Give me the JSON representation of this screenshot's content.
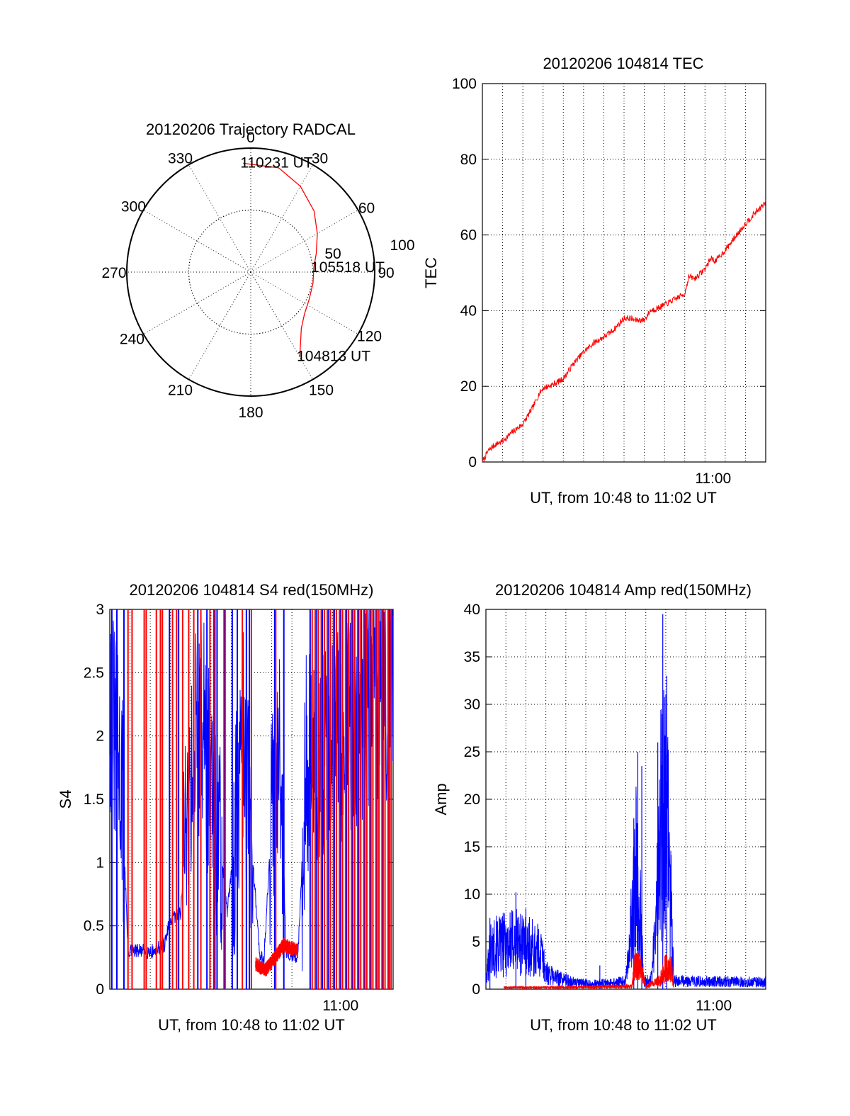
{
  "colors": {
    "red": "#ff0000",
    "blue": "#0000ff",
    "axis": "#000000",
    "background": "#ffffff"
  },
  "chart_data": [
    {
      "type": "polar",
      "title": "20120206 Trajectory RADCAL",
      "angle_labels": [
        "0",
        "30",
        "60",
        "90",
        "120",
        "150",
        "180",
        "210",
        "240",
        "270",
        "300",
        "330"
      ],
      "radius_labels": [
        "50",
        "100"
      ],
      "rlim": [
        0,
        100
      ],
      "grid": true,
      "series": [
        {
          "color": "red",
          "points": [
            {
              "az": 150,
              "r": 79
            },
            {
              "az": 145,
              "r": 70
            },
            {
              "az": 138,
              "r": 61
            },
            {
              "az": 128,
              "r": 55
            },
            {
              "az": 115,
              "r": 52
            },
            {
              "az": 100,
              "r": 51
            },
            {
              "az": 86,
              "r": 51
            },
            {
              "az": 74,
              "r": 55
            },
            {
              "az": 60,
              "r": 62
            },
            {
              "az": 46,
              "r": 71
            },
            {
              "az": 30,
              "r": 80
            },
            {
              "az": 15,
              "r": 87
            },
            {
              "az": 356,
              "r": 88
            }
          ]
        }
      ],
      "annotations": [
        {
          "text": "104813 UT",
          "az": 150,
          "r": 79
        },
        {
          "text": "105518 UT",
          "az": 86,
          "r": 51
        },
        {
          "text": "110231 UT",
          "az": 356,
          "r": 88
        }
      ]
    },
    {
      "type": "line",
      "title": "20120206 104814 TEC",
      "xlabel": "UT, from 10:48 to 11:02 UT",
      "ylabel": "TEC",
      "x_tick_labels": [
        {
          "label": "11:00",
          "minute": 11.4
        }
      ],
      "xlim": [
        0,
        14
      ],
      "ylim": [
        0,
        100
      ],
      "yticks": [
        "0",
        "20",
        "40",
        "60",
        "80",
        "100"
      ],
      "grid": true,
      "series": [
        {
          "color": "red",
          "x": [
            0,
            0.3,
            0.6,
            1.0,
            1.5,
            2.0,
            2.5,
            2.8,
            3.0,
            3.5,
            4.0,
            4.5,
            5.0,
            5.5,
            6.0,
            6.5,
            7.0,
            7.3,
            7.5,
            8.0,
            8.3,
            8.6,
            9.0,
            9.5,
            10.0,
            10.2,
            10.5,
            11.0,
            11.3,
            11.5,
            12.0,
            12.5,
            13.0,
            13.5,
            14.0
          ],
          "y": [
            0,
            3,
            4.5,
            5.5,
            8,
            10,
            14.5,
            18,
            19.5,
            20.5,
            22,
            26,
            29,
            31.5,
            33,
            35,
            38,
            38,
            37.5,
            37.5,
            40,
            40.5,
            41.5,
            43,
            44.5,
            49,
            48.5,
            51,
            54,
            53,
            56,
            59.5,
            63,
            66,
            68.5
          ]
        }
      ]
    },
    {
      "type": "line",
      "title": "20120206 104814 S4 red(150MHz)",
      "xlabel": "UT, from 10:48 to 11:02 UT",
      "ylabel": "S4",
      "x_tick_labels": [
        {
          "label": "11:00",
          "minute": 11.4
        }
      ],
      "xlim": [
        0,
        14
      ],
      "ylim": [
        0,
        3
      ],
      "yticks": [
        "0",
        "0.5",
        "1",
        "1.5",
        "2",
        "2.5",
        "3"
      ],
      "grid": true,
      "series": [
        {
          "color": "blue",
          "profile": [
            [
              0,
              2.3
            ],
            [
              0.3,
              1.9
            ],
            [
              0.6,
              1.6
            ],
            [
              0.9,
              0.3
            ],
            [
              2.2,
              0.3
            ],
            [
              2.7,
              0.35
            ],
            [
              3.0,
              0.55
            ],
            [
              3.5,
              0.6
            ],
            [
              3.8,
              1.4
            ],
            [
              4.2,
              2.0
            ],
            [
              4.6,
              2.2
            ],
            [
              5.0,
              1.5
            ],
            [
              5.5,
              1.1
            ],
            [
              5.8,
              0.6
            ],
            [
              6.2,
              1.2
            ],
            [
              6.6,
              2.0
            ],
            [
              7.4,
              0.3
            ],
            [
              7.6,
              0.2
            ],
            [
              8.0,
              1.3
            ],
            [
              8.4,
              2.2
            ],
            [
              8.7,
              0.3
            ],
            [
              9.3,
              0.25
            ],
            [
              9.7,
              1.8
            ],
            [
              14.0,
              2.4
            ]
          ],
          "spikes": [
            0.1,
            0.35,
            0.7,
            2.95,
            3.4,
            4.35,
            4.8,
            5.15,
            5.3,
            5.65,
            6.05,
            6.3,
            6.75,
            6.9,
            8.15,
            8.6,
            9.9,
            10.2,
            10.5,
            10.8,
            11.1,
            11.4,
            11.7,
            12.0,
            12.3,
            12.6,
            12.9,
            13.2,
            13.5,
            13.8
          ]
        },
        {
          "color": "red",
          "profile": [
            [
              7.2,
              0.2
            ],
            [
              7.7,
              0.15
            ],
            [
              8.6,
              0.35
            ],
            [
              9.3,
              0.3
            ]
          ],
          "spikes": [
            0.9,
            1.1,
            1.7,
            1.8,
            2.3,
            2.5,
            2.6,
            3.1,
            3.3,
            3.6,
            3.9,
            4.15,
            4.5,
            4.95,
            5.2,
            5.7,
            6.55,
            7.0,
            8.2,
            10.0,
            10.15,
            10.3,
            10.45,
            10.6,
            10.75,
            10.9,
            11.05,
            11.2,
            11.35,
            11.5,
            11.65,
            11.8,
            11.95,
            12.1,
            12.25,
            12.4,
            12.55,
            12.7,
            12.85,
            13.0,
            13.15,
            13.3,
            13.45,
            13.6,
            13.75,
            13.9
          ]
        }
      ]
    },
    {
      "type": "line",
      "title": "20120206 104814 Amp red(150MHz)",
      "xlabel": "UT, from 10:48 to 11:02 UT",
      "ylabel": "Amp",
      "x_tick_labels": [
        {
          "label": "11:00",
          "minute": 11.4
        }
      ],
      "xlim": [
        0,
        14
      ],
      "ylim": [
        0,
        40
      ],
      "yticks": [
        "0",
        "5",
        "10",
        "15",
        "20",
        "25",
        "30",
        "35",
        "40"
      ],
      "grid": true,
      "series": [
        {
          "color": "blue",
          "envelope": [
            [
              0,
              1.0
            ],
            [
              0.2,
              7.5
            ],
            [
              0.8,
              8.0
            ],
            [
              1.2,
              8.5
            ],
            [
              1.6,
              9.0
            ],
            [
              2.0,
              8.0
            ],
            [
              2.8,
              6.5
            ],
            [
              3.0,
              3.0
            ],
            [
              3.5,
              2.2
            ],
            [
              4.5,
              1.2
            ],
            [
              5.5,
              1.0
            ],
            [
              6.5,
              1.2
            ],
            [
              7.0,
              1.5
            ],
            [
              7.3,
              12.0
            ],
            [
              7.5,
              22.0
            ],
            [
              7.7,
              15.0
            ],
            [
              7.9,
              1.5
            ],
            [
              8.3,
              2.0
            ],
            [
              8.6,
              18.0
            ],
            [
              8.8,
              35.0
            ],
            [
              9.0,
              32.0
            ],
            [
              9.2,
              22.0
            ],
            [
              9.4,
              1.5
            ],
            [
              14.0,
              1.3
            ]
          ],
          "spikes": [
            [
              0.2,
              7.5
            ],
            [
              1.5,
              10.2
            ],
            [
              2.0,
              8.5
            ],
            [
              5.7,
              2.5
            ],
            [
              7.4,
              18.0
            ],
            [
              7.6,
              25.0
            ],
            [
              7.8,
              23.5
            ],
            [
              8.6,
              26.0
            ],
            [
              8.85,
              39.5
            ],
            [
              9.05,
              33.0
            ]
          ]
        },
        {
          "color": "red",
          "envelope": [
            [
              0.9,
              0.3
            ],
            [
              2.9,
              0.3
            ],
            [
              7.3,
              0.5
            ],
            [
              7.5,
              5.0
            ],
            [
              7.8,
              3.0
            ],
            [
              8.0,
              0.5
            ],
            [
              8.7,
              1.5
            ],
            [
              9.0,
              4.0
            ],
            [
              9.3,
              3.5
            ],
            [
              9.4,
              0.5
            ]
          ]
        }
      ]
    }
  ]
}
